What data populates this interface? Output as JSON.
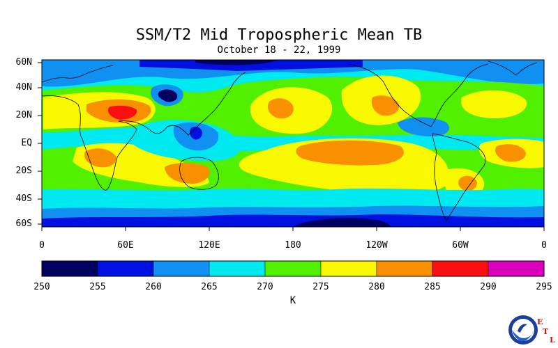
{
  "map": {
    "title": "SSM/T2 Mid Tropospheric Mean TB",
    "subtitle": "October 18 - 22, 1999",
    "lat_labels": [
      "60N",
      "40N",
      "20N",
      "EQ",
      "20S",
      "40S",
      "60S"
    ],
    "lon_labels": [
      "0",
      "60E",
      "120E",
      "180",
      "120W",
      "60W",
      "0"
    ],
    "colorbar": {
      "ticks": [
        "250",
        "255",
        "260",
        "265",
        "270",
        "275",
        "280",
        "285",
        "290",
        "295"
      ],
      "colors": [
        "#000060",
        "#0010e0",
        "#1090f0",
        "#00e8f0",
        "#50f000",
        "#f8f800",
        "#f89000",
        "#f81010",
        "#d800b8"
      ],
      "units": "K"
    },
    "logo": {
      "name": "NOAA",
      "letters": [
        "E",
        "T",
        "L"
      ]
    }
  }
}
